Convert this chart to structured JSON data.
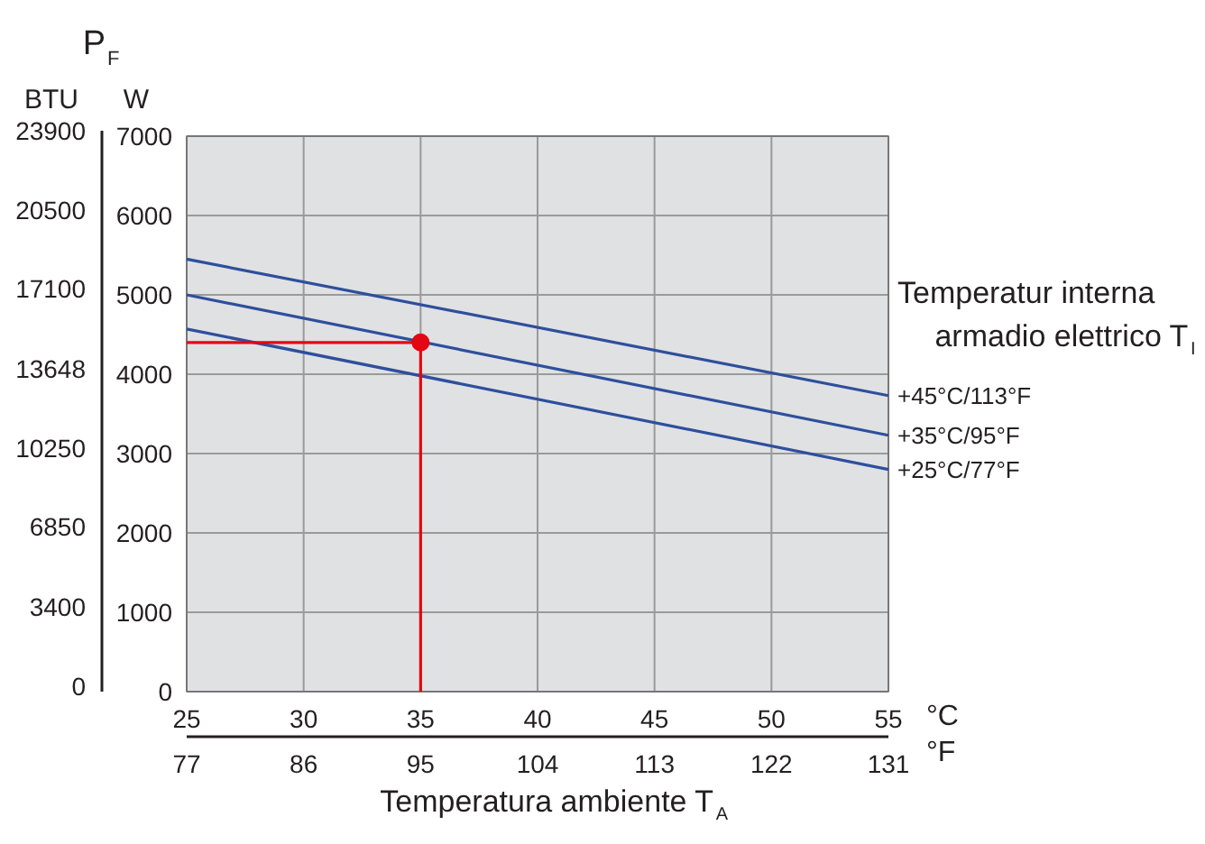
{
  "chart_data": {
    "type": "line",
    "title": "P$_{F}$",
    "ylabel": "W",
    "y2label": "BTU",
    "xlabel": "Temperatura ambiente T$_{A}$",
    "x2label": "°F",
    "legend_title": "Temperatur interna armadio elettrico T$_{I}$",
    "annotations": [
      "°C"
    ],
    "xlim": [
      25,
      55
    ],
    "xticks": [
      25,
      30,
      35,
      40,
      45,
      50,
      55
    ],
    "x2lim": [
      77,
      131
    ],
    "x2ticks": [
      77,
      86,
      95,
      104,
      113,
      122,
      131
    ],
    "ylim": [
      0,
      7000
    ],
    "yticks": [
      0,
      1000,
      2000,
      3000,
      4000,
      5000,
      6000,
      7000
    ],
    "y2lim": [
      0,
      23900
    ],
    "y2ticks": [
      0,
      3400,
      6850,
      10250,
      13648,
      17100,
      20500,
      23900
    ],
    "grid": true,
    "legend": false,
    "line_style": "solid",
    "series": [
      {
        "name": "+45°C/113°F",
        "color": "#2e4f9c",
        "x": [
          25,
          55
        ],
        "values": [
          5450,
          3730
        ]
      },
      {
        "name": "+35°C/95°F",
        "color": "#2e4f9c",
        "x": [
          25,
          55
        ],
        "values": [
          5000,
          3230
        ]
      },
      {
        "name": "+25°C/77°F",
        "color": "#2e4f9c",
        "x": [
          25,
          55
        ],
        "values": [
          4570,
          2800
        ]
      },
      {
        "color": "#e30613",
        "x": [
          35,
          35,
          25
        ],
        "values": [
          0,
          4400,
          4400
        ]
      },
      {
        "type": "scatter",
        "color": "#e30613",
        "x": [
          35
        ],
        "values": [
          4400
        ]
      }
    ]
  }
}
